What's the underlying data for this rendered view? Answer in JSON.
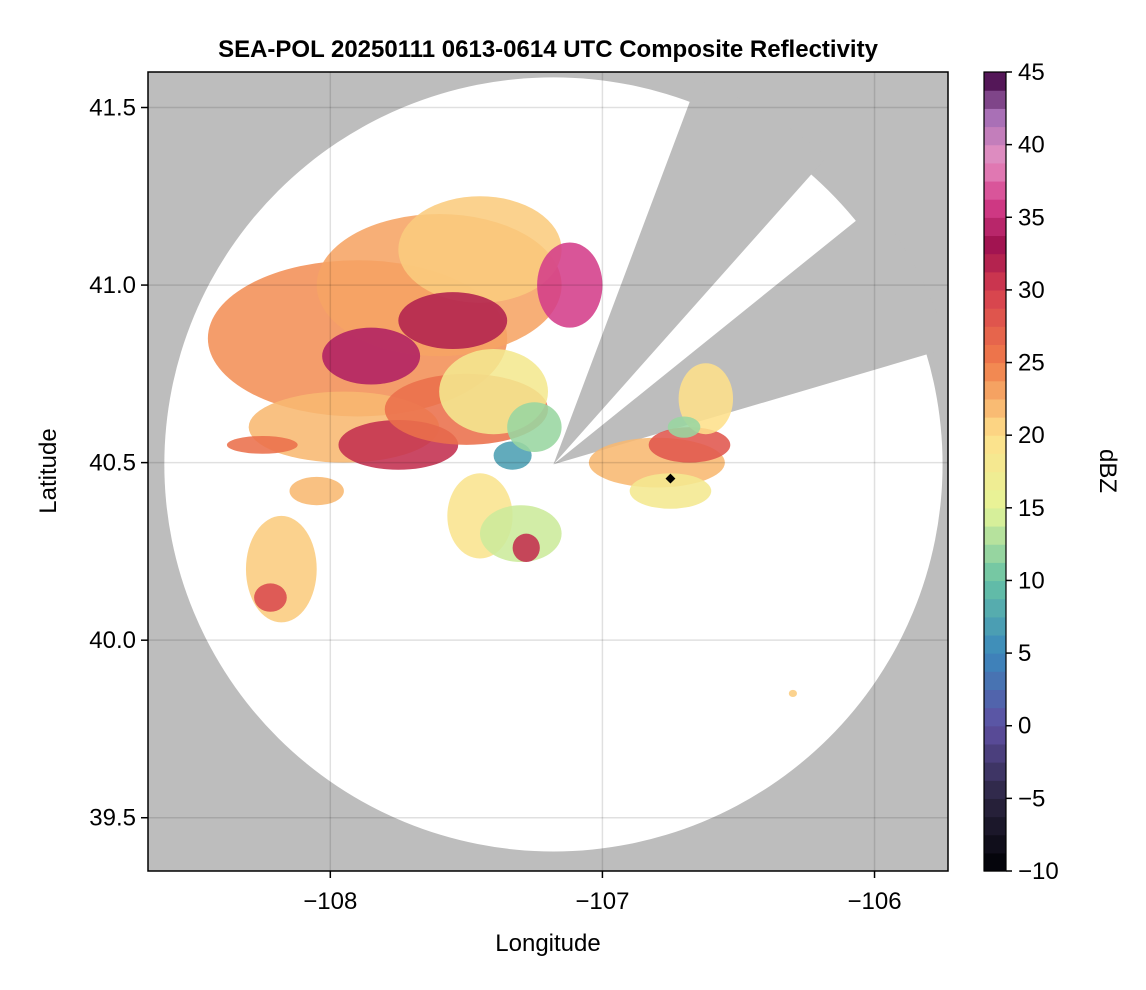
{
  "chart_data": {
    "type": "heatmap",
    "title": "SEA-POL 20250111 0613-0614 UTC Composite Reflectivity",
    "xlabel": "Longitude",
    "ylabel": "Latitude",
    "xlim": [
      -108.67,
      -105.73
    ],
    "ylim": [
      39.35,
      41.6
    ],
    "xticks": [
      -108,
      -107,
      -106
    ],
    "xtick_labels": [
      "−108",
      "−107",
      "−106"
    ],
    "yticks": [
      39.5,
      40.0,
      40.5,
      41.0,
      41.5
    ],
    "ytick_labels": [
      "39.5",
      "40.0",
      "40.5",
      "41.0",
      "41.5"
    ],
    "grid": true,
    "background_color": "#bdbdbd",
    "radar": {
      "center_lon": -107.18,
      "center_lat": 40.495,
      "range_deg_lon": 1.43,
      "range_deg_lat": 1.09,
      "blocked_sectors_deg": [
        [
          20.5,
          41.5
        ],
        [
          51.0,
          73.5
        ]
      ]
    },
    "marker": {
      "lon": -106.75,
      "lat": 40.455,
      "color": "#000000"
    },
    "colorbar": {
      "label": "dBZ",
      "min": -10,
      "max": 45,
      "ticks": [
        -10,
        -5,
        0,
        5,
        10,
        15,
        20,
        25,
        30,
        35,
        40,
        45
      ],
      "tick_labels": [
        "−10",
        "−5",
        "0",
        "5",
        "10",
        "15",
        "20",
        "25",
        "30",
        "35",
        "40",
        "45"
      ],
      "colormap": "spectral-reversed",
      "colormap_stops": [
        {
          "v": -10,
          "c": "#000004"
        },
        {
          "v": -5,
          "c": "#2b2540"
        },
        {
          "v": 0,
          "c": "#5e4fa2"
        },
        {
          "v": 5,
          "c": "#3b88bc"
        },
        {
          "v": 10,
          "c": "#66c2a5"
        },
        {
          "v": 15,
          "c": "#e6f598"
        },
        {
          "v": 20,
          "c": "#fee08b"
        },
        {
          "v": 25,
          "c": "#f07c4a"
        },
        {
          "v": 30,
          "c": "#d53e4f"
        },
        {
          "v": 33,
          "c": "#a0124f"
        },
        {
          "v": 36,
          "c": "#d43d8a"
        },
        {
          "v": 39,
          "c": "#e590c2"
        },
        {
          "v": 42,
          "c": "#a66fb5"
        },
        {
          "v": 45,
          "c": "#3f0040"
        }
      ]
    },
    "echo_regions": [
      {
        "lon": -107.9,
        "lat": 40.85,
        "rlon": 0.55,
        "rlat": 0.22,
        "dbz": 24
      },
      {
        "lon": -107.6,
        "lat": 41.0,
        "rlon": 0.45,
        "rlat": 0.2,
        "dbz": 23
      },
      {
        "lon": -107.45,
        "lat": 41.1,
        "rlon": 0.3,
        "rlat": 0.15,
        "dbz": 21
      },
      {
        "lon": -107.85,
        "lat": 40.8,
        "rlon": 0.18,
        "rlat": 0.08,
        "dbz": 34
      },
      {
        "lon": -107.55,
        "lat": 40.9,
        "rlon": 0.2,
        "rlat": 0.08,
        "dbz": 32
      },
      {
        "lon": -107.12,
        "lat": 41.0,
        "rlon": 0.12,
        "rlat": 0.12,
        "dbz": 36
      },
      {
        "lon": -107.95,
        "lat": 40.6,
        "rlon": 0.35,
        "rlat": 0.1,
        "dbz": 22
      },
      {
        "lon": -107.75,
        "lat": 40.55,
        "rlon": 0.22,
        "rlat": 0.07,
        "dbz": 31
      },
      {
        "lon": -107.5,
        "lat": 40.65,
        "rlon": 0.3,
        "rlat": 0.1,
        "dbz": 26
      },
      {
        "lon": -107.4,
        "lat": 40.7,
        "rlon": 0.2,
        "rlat": 0.12,
        "dbz": 18
      },
      {
        "lon": -108.25,
        "lat": 40.55,
        "rlon": 0.13,
        "rlat": 0.025,
        "dbz": 26
      },
      {
        "lon": -108.05,
        "lat": 40.42,
        "rlon": 0.1,
        "rlat": 0.04,
        "dbz": 22
      },
      {
        "lon": -108.18,
        "lat": 40.2,
        "rlon": 0.13,
        "rlat": 0.15,
        "dbz": 21
      },
      {
        "lon": -108.22,
        "lat": 40.12,
        "rlon": 0.06,
        "rlat": 0.04,
        "dbz": 29
      },
      {
        "lon": -107.45,
        "lat": 40.35,
        "rlon": 0.12,
        "rlat": 0.12,
        "dbz": 19
      },
      {
        "lon": -107.3,
        "lat": 40.3,
        "rlon": 0.15,
        "rlat": 0.08,
        "dbz": 14
      },
      {
        "lon": -107.28,
        "lat": 40.26,
        "rlon": 0.05,
        "rlat": 0.04,
        "dbz": 31
      },
      {
        "lon": -107.33,
        "lat": 40.52,
        "rlon": 0.07,
        "rlat": 0.04,
        "dbz": 7
      },
      {
        "lon": -107.25,
        "lat": 40.6,
        "rlon": 0.1,
        "rlat": 0.07,
        "dbz": 12
      },
      {
        "lon": -106.8,
        "lat": 40.5,
        "rlon": 0.25,
        "rlat": 0.07,
        "dbz": 22
      },
      {
        "lon": -106.68,
        "lat": 40.55,
        "rlon": 0.15,
        "rlat": 0.05,
        "dbz": 28
      },
      {
        "lon": -106.62,
        "lat": 40.68,
        "rlon": 0.1,
        "rlat": 0.1,
        "dbz": 20
      },
      {
        "lon": -106.75,
        "lat": 40.42,
        "rlon": 0.15,
        "rlat": 0.05,
        "dbz": 18
      },
      {
        "lon": -106.7,
        "lat": 40.6,
        "rlon": 0.06,
        "rlat": 0.03,
        "dbz": 12
      },
      {
        "lon": -106.3,
        "lat": 39.85,
        "rlon": 0.015,
        "rlat": 0.01,
        "dbz": 21
      }
    ]
  }
}
